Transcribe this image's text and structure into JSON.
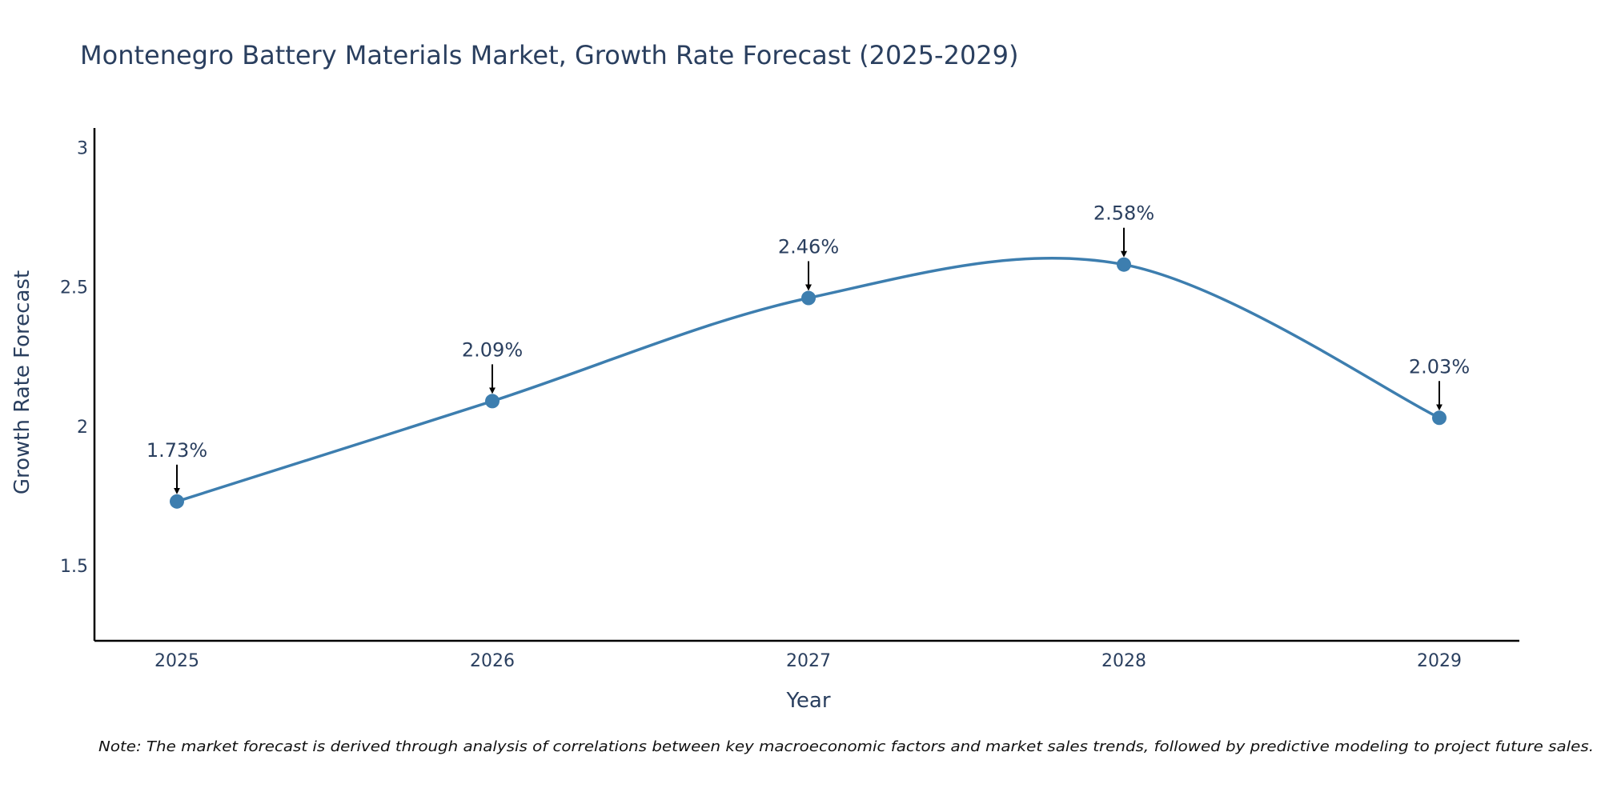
{
  "chart_data": {
    "type": "line",
    "title": "Montenegro Battery Materials Market, Growth Rate Forecast (2025-2029)",
    "xlabel": "Year",
    "ylabel": "Growth Rate Forecast",
    "categories": [
      "2025",
      "2026",
      "2027",
      "2028",
      "2029"
    ],
    "series": [
      {
        "name": "Growth Rate Forecast",
        "values": [
          1.73,
          2.09,
          2.46,
          2.58,
          2.03
        ],
        "labels": [
          "1.73%",
          "2.09%",
          "2.46%",
          "2.58%",
          "2.03%"
        ]
      }
    ],
    "y_ticks": [
      1.5,
      2,
      2.5,
      3
    ],
    "y_tick_labels": [
      "1.5",
      "2",
      "2.5",
      "3"
    ],
    "ylim": [
      1.23,
      3.07
    ],
    "grid": false,
    "legend": "none",
    "annotations": {
      "note": "Note: The market forecast is derived through analysis of correlations between key macroeconomic factors and market sales trends, followed by predictive modeling to project future sales."
    }
  },
  "colors": {
    "line": "#3d7eaf",
    "marker": "#3d7eaf",
    "text": "#2a3f5f",
    "axis": "#000000",
    "arrow": "#000000"
  }
}
